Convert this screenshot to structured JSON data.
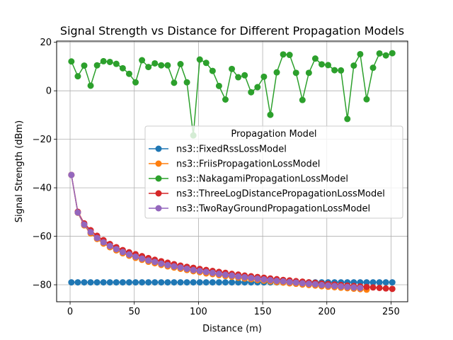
{
  "chart_data": {
    "type": "line",
    "title": "Signal Strength vs Distance for Different Propagation Models",
    "xlabel": "Distance (m)",
    "ylabel": "Signal Strength (dBm)",
    "xlim": [
      -10.5,
      263
    ],
    "ylim": [
      -87,
      20.5
    ],
    "x_ticks": [
      0,
      50,
      100,
      150,
      200,
      250
    ],
    "x_tick_labels": [
      "0",
      "50",
      "100",
      "150",
      "200",
      "250"
    ],
    "y_ticks": [
      -80,
      -60,
      -40,
      -20,
      0,
      20
    ],
    "y_tick_labels": [
      "−80",
      "−60",
      "−40",
      "−20",
      "0",
      "20"
    ],
    "grid": true,
    "legend": {
      "title": "Propagation Model",
      "placement": "center-right"
    },
    "colors": {
      "ns3::FixedRssLossModel": "#1f77b4",
      "ns3::FriisPropagationLossModel": "#ff7f0e",
      "ns3::NakagamiPropagationLossModel": "#2ca02c",
      "ns3::ThreeLogDistancePropagationLossModel": "#d62728",
      "ns3::TwoRayGroundPropagationLossModel": "#9467bd"
    },
    "series": [
      {
        "name": "ns3::FixedRssLossModel",
        "x": [
          1,
          6,
          11,
          16,
          21,
          26,
          31,
          36,
          41,
          46,
          51,
          56,
          61,
          66,
          71,
          76,
          81,
          86,
          91,
          96,
          101,
          106,
          111,
          116,
          121,
          126,
          131,
          136,
          141,
          146,
          151,
          156,
          161,
          166,
          171,
          176,
          181,
          186,
          191,
          196,
          201,
          206,
          211,
          216,
          221,
          226,
          231,
          236,
          241,
          246,
          251
        ],
        "y": [
          -79,
          -79,
          -79,
          -79,
          -79,
          -79,
          -79,
          -79,
          -79,
          -79,
          -79,
          -79,
          -79,
          -79,
          -79,
          -79,
          -79,
          -79,
          -79,
          -79,
          -79,
          -79,
          -79,
          -79,
          -79,
          -79,
          -79,
          -79,
          -79,
          -79,
          -79,
          -79,
          -79,
          -79,
          -79,
          -79,
          -79,
          -79,
          -79,
          -79,
          -79,
          -79,
          -79,
          -79,
          -79,
          -79,
          -79,
          -79,
          -79,
          -79,
          -79
        ]
      },
      {
        "name": "ns3::FriisPropagationLossModel",
        "x": [
          1,
          6,
          11,
          16,
          21,
          26,
          31,
          36,
          41,
          46,
          51,
          56,
          61,
          66,
          71,
          76,
          81,
          86,
          91,
          96,
          101,
          106,
          111,
          116,
          121,
          126,
          131,
          136,
          141,
          146,
          151,
          156,
          161,
          166,
          171,
          176,
          181,
          186,
          191,
          196,
          201,
          206,
          211,
          216,
          221,
          226,
          231
        ],
        "y": [
          -34.7,
          -50.3,
          -55.5,
          -58.8,
          -61.1,
          -63.0,
          -64.5,
          -65.8,
          -67.0,
          -68.0,
          -68.9,
          -69.7,
          -70.5,
          -71.1,
          -71.8,
          -72.4,
          -72.9,
          -73.4,
          -73.9,
          -74.4,
          -74.8,
          -75.3,
          -75.6,
          -76.0,
          -76.4,
          -76.7,
          -77.1,
          -77.4,
          -77.7,
          -78.0,
          -78.3,
          -78.6,
          -78.9,
          -79.1,
          -79.4,
          -79.6,
          -79.9,
          -80.1,
          -80.3,
          -80.6,
          -80.8,
          -81.0,
          -81.2,
          -81.4,
          -81.6,
          -81.8,
          -82.0
        ]
      },
      {
        "name": "ns3::NakagamiPropagationLossModel",
        "x": [
          1,
          6,
          11,
          16,
          21,
          26,
          31,
          36,
          41,
          46,
          51,
          56,
          61,
          66,
          71,
          76,
          81,
          86,
          91,
          96,
          101,
          106,
          111,
          116,
          121,
          126,
          131,
          136,
          141,
          146,
          151,
          156,
          161,
          166,
          171,
          176,
          181,
          186,
          191,
          196,
          201,
          206,
          211,
          216,
          221,
          226,
          231,
          236,
          241,
          246,
          251
        ],
        "y": [
          12.1,
          6.0,
          10.4,
          2.1,
          10.5,
          12.2,
          11.9,
          11.1,
          9.3,
          7.0,
          3.5,
          12.6,
          9.8,
          11.3,
          10.5,
          10.5,
          3.3,
          11.0,
          3.5,
          -18.4,
          12.9,
          11.5,
          8.2,
          2.0,
          -3.6,
          9.0,
          5.6,
          6.4,
          -0.6,
          1.5,
          5.8,
          -9.9,
          7.6,
          15.0,
          14.8,
          7.4,
          -3.8,
          7.4,
          13.3,
          10.9,
          10.6,
          8.5,
          8.4,
          -11.6,
          10.4,
          15.1,
          -3.5,
          9.5,
          15.4,
          14.6,
          15.5
        ]
      },
      {
        "name": "ns3::ThreeLogDistancePropagationLossModel",
        "x": [
          1,
          6,
          11,
          16,
          21,
          26,
          31,
          36,
          41,
          46,
          51,
          56,
          61,
          66,
          71,
          76,
          81,
          86,
          91,
          96,
          101,
          106,
          111,
          116,
          121,
          126,
          131,
          136,
          141,
          146,
          151,
          156,
          161,
          166,
          171,
          176,
          181,
          186,
          191,
          196,
          201,
          206,
          211,
          216,
          221,
          226,
          231,
          236,
          241,
          246,
          251
        ],
        "y": [
          -34.7,
          -49.9,
          -54.7,
          -57.5,
          -59.8,
          -61.6,
          -63.2,
          -64.5,
          -65.7,
          -66.6,
          -67.4,
          -68.2,
          -69.0,
          -69.7,
          -70.3,
          -70.9,
          -71.5,
          -72.1,
          -72.6,
          -73.0,
          -73.5,
          -73.9,
          -74.3,
          -74.7,
          -75.1,
          -75.5,
          -75.8,
          -76.2,
          -76.5,
          -76.8,
          -77.1,
          -77.4,
          -77.7,
          -78.0,
          -78.2,
          -78.5,
          -78.7,
          -79.0,
          -79.2,
          -79.5,
          -79.7,
          -79.9,
          -80.1,
          -80.3,
          -80.5,
          -80.7,
          -80.9,
          -81.1,
          -81.3,
          -81.5,
          -81.7
        ]
      },
      {
        "name": "ns3::TwoRayGroundPropagationLossModel",
        "x": [
          1,
          6,
          11,
          16,
          21,
          26,
          31,
          36,
          41,
          46,
          51,
          56,
          61,
          66,
          71,
          76,
          81,
          86,
          91,
          96,
          101,
          106,
          111,
          116,
          121,
          126,
          131,
          136,
          141,
          146,
          151,
          156,
          161,
          166,
          171,
          176,
          181,
          186,
          191,
          196,
          201,
          206,
          211,
          216,
          221,
          226
        ],
        "y": [
          -34.7,
          -50.2,
          -55.2,
          -58.3,
          -60.7,
          -62.5,
          -64.0,
          -65.3,
          -66.5,
          -67.5,
          -68.4,
          -69.2,
          -70.0,
          -70.6,
          -71.3,
          -71.9,
          -72.4,
          -72.9,
          -73.4,
          -73.9,
          -74.3,
          -74.7,
          -75.1,
          -75.5,
          -75.9,
          -76.2,
          -76.6,
          -76.9,
          -77.2,
          -77.5,
          -77.8,
          -78.1,
          -78.4,
          -78.6,
          -78.9,
          -79.1,
          -79.4,
          -79.6,
          -79.8,
          -80.1,
          -80.3,
          -80.5,
          -80.7,
          -80.9,
          -81.1,
          -81.3
        ]
      }
    ]
  }
}
